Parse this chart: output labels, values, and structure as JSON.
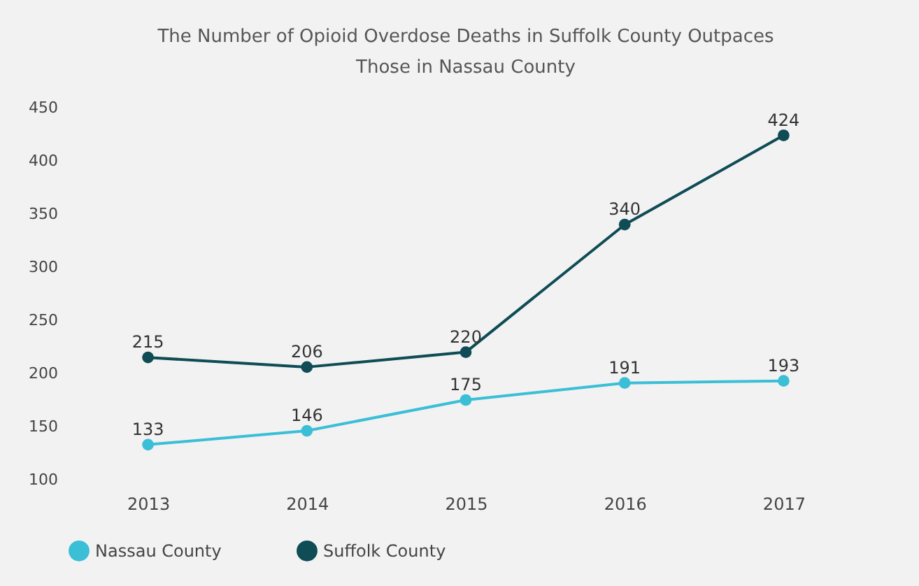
{
  "chart_data": {
    "type": "line",
    "title": "The Number of Opioid Overdose Deaths in Suffolk County Outpaces Those in Nassau County",
    "categories": [
      "2013",
      "2014",
      "2015",
      "2016",
      "2017"
    ],
    "series": [
      {
        "name": "Nassau County",
        "color": "#3bbfd6",
        "values": [
          133,
          146,
          175,
          191,
          193
        ]
      },
      {
        "name": "Suffolk County",
        "color": "#0f4c55",
        "values": [
          215,
          206,
          220,
          340,
          424
        ]
      }
    ],
    "ylim": [
      100,
      450
    ],
    "yticks": [
      100,
      150,
      200,
      250,
      300,
      350,
      400,
      450
    ],
    "grid": false,
    "legend": "bottom",
    "marker": "circle",
    "line_style": "solid",
    "data_labels": true
  }
}
